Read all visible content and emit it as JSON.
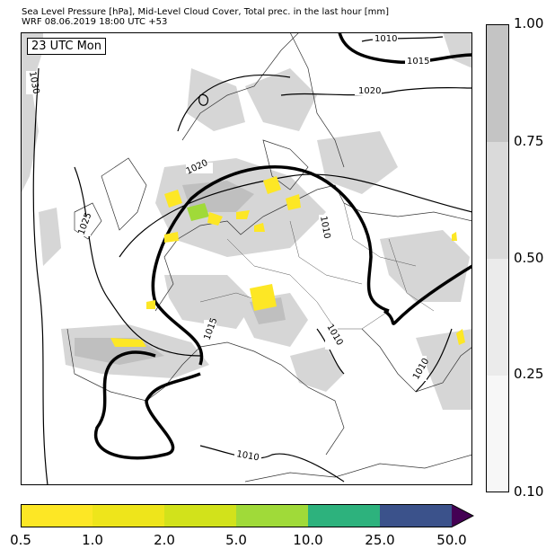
{
  "header": {
    "title_line1": "Sea Level Pressure [hPa], Mid-Level Cloud Cover, Total prec. in the last hour [mm]",
    "title_line2": "WRF 08.06.2019 18:00 UTC +53"
  },
  "map": {
    "time_label": "23 UTC Mon",
    "isobar_labels": [
      "1030",
      "1025",
      "1020",
      "1020",
      "1015",
      "1015",
      "1010",
      "1010",
      "1010",
      "1010",
      "1010"
    ]
  },
  "cloud_legend": {
    "ticks": [
      "1.00",
      "0.75",
      "0.50",
      "0.25",
      "0.10"
    ],
    "colors": [
      "#c4c4c4",
      "#dadada",
      "#ebebeb",
      "#f7f7f7"
    ]
  },
  "precip_legend": {
    "ticks": [
      "0.5",
      "1.0",
      "2.0",
      "5.0",
      "10.0",
      "25.0",
      "50.0"
    ],
    "colors": [
      "#fde725",
      "#eee51b",
      "#d2e21b",
      "#a0da39",
      "#2db27d",
      "#3b528b",
      "#440154"
    ]
  }
}
